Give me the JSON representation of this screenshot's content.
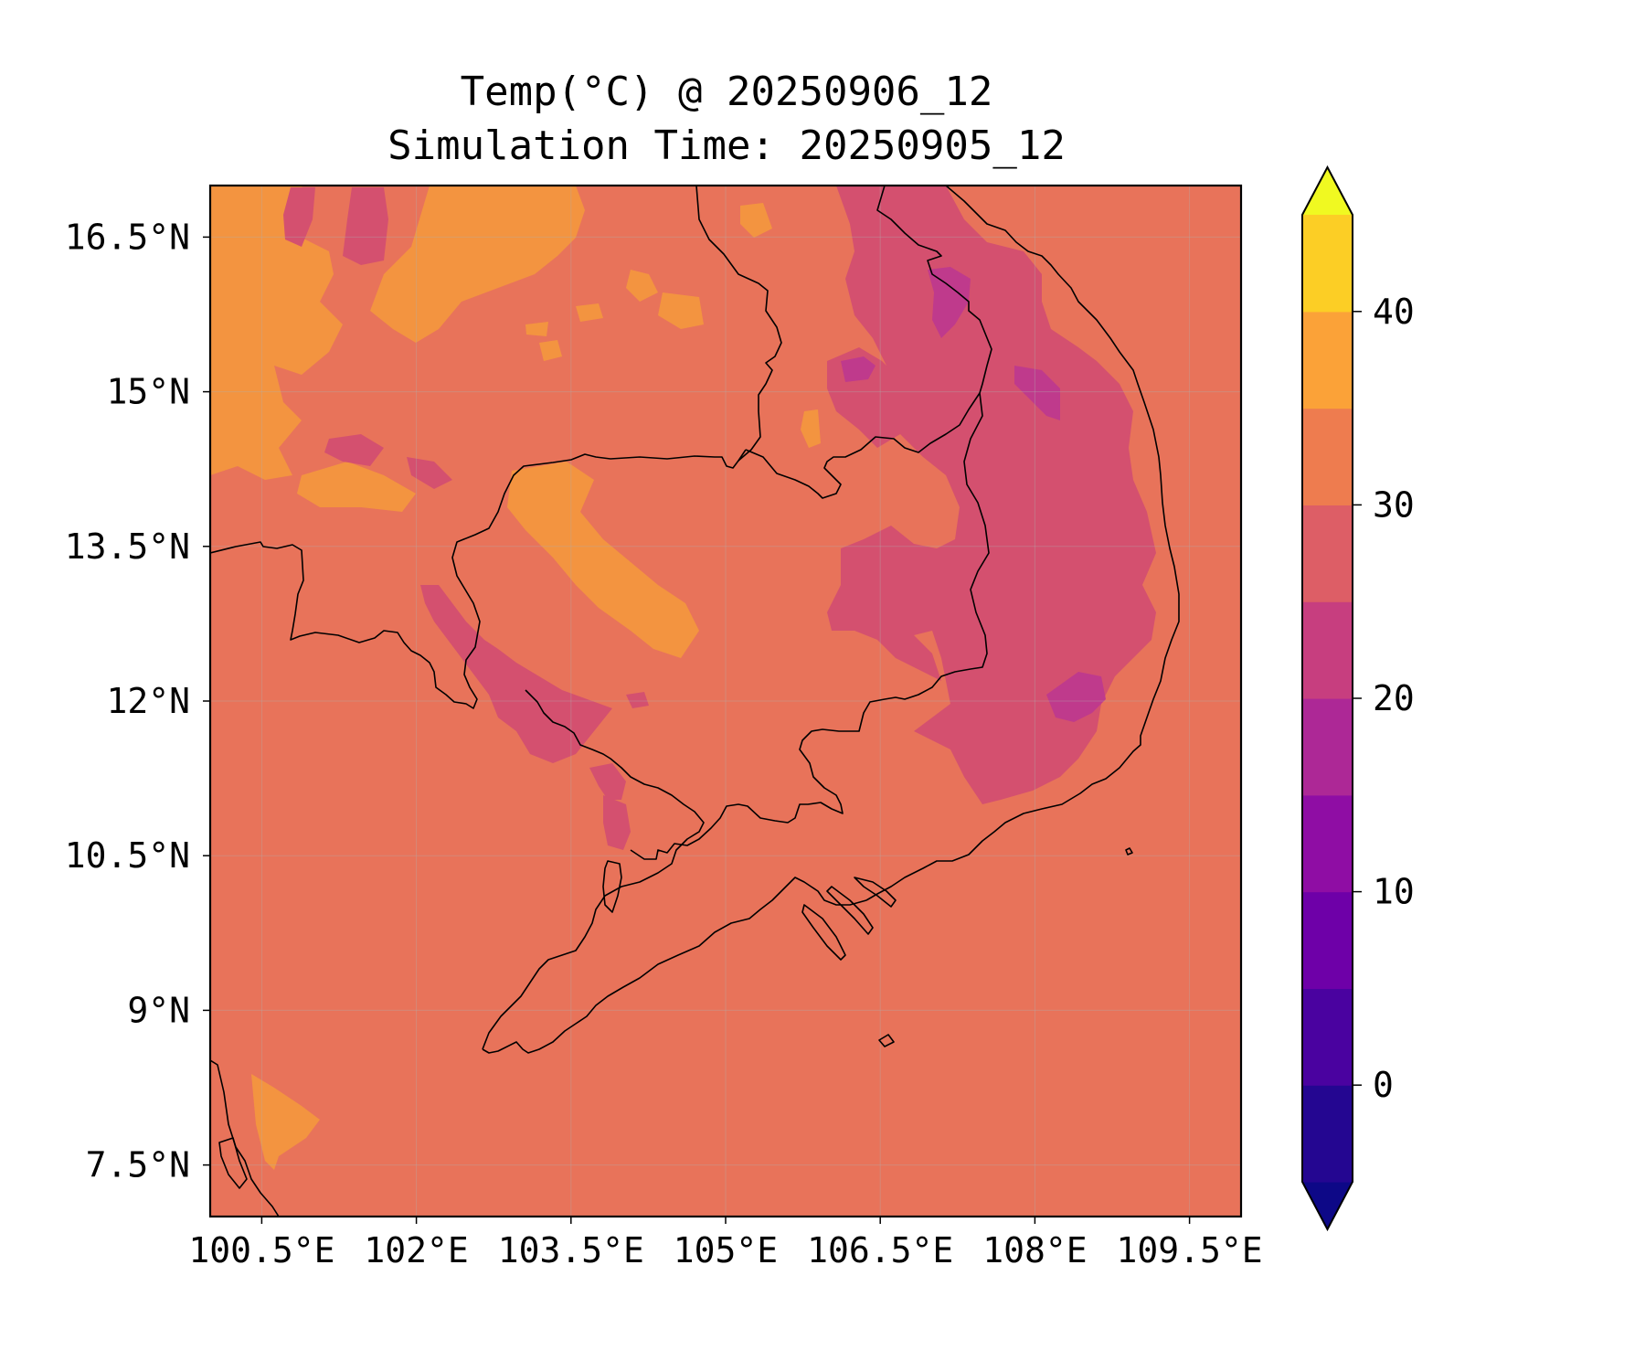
{
  "title": {
    "line1": "Temp(°C) @ 20250906_12",
    "line2": "Simulation Time: 20250905_12"
  },
  "map": {
    "type": "filled-contour map",
    "variable": "Temp(°C)",
    "lon_range": [
      100.0,
      110.0
    ],
    "lat_range": [
      7.0,
      17.0
    ],
    "x_ticks": [
      "100.5°E",
      "102°E",
      "103.5°E",
      "105°E",
      "106.5°E",
      "108°E",
      "109.5°E"
    ],
    "y_ticks": [
      "16.5°N",
      "15°N",
      "13.5°N",
      "12°N",
      "10.5°N",
      "9°N",
      "7.5°N"
    ],
    "background_band": "25-30",
    "colors": {
      "band_25_30": "#e8735a",
      "band_30_35": "#f39440",
      "band_20_25": "#d4506f",
      "band_15_20": "#bf3a8c",
      "coastline": "#000000"
    }
  },
  "colorbar": {
    "levels": [
      -5,
      0,
      5,
      10,
      15,
      20,
      25,
      30,
      35,
      40,
      45
    ],
    "tick_labels": [
      "0",
      "10",
      "20",
      "30",
      "40"
    ],
    "extend": "both",
    "colormap": "plasma",
    "band_colors": [
      "#240691",
      "#4a02a0",
      "#6e00a8",
      "#8f0da4",
      "#ad2896",
      "#c73e7f",
      "#dd5e66",
      "#ee7c4f",
      "#fba238",
      "#fcce25"
    ],
    "under_color": "#0d0887",
    "over_color": "#f0f921"
  }
}
